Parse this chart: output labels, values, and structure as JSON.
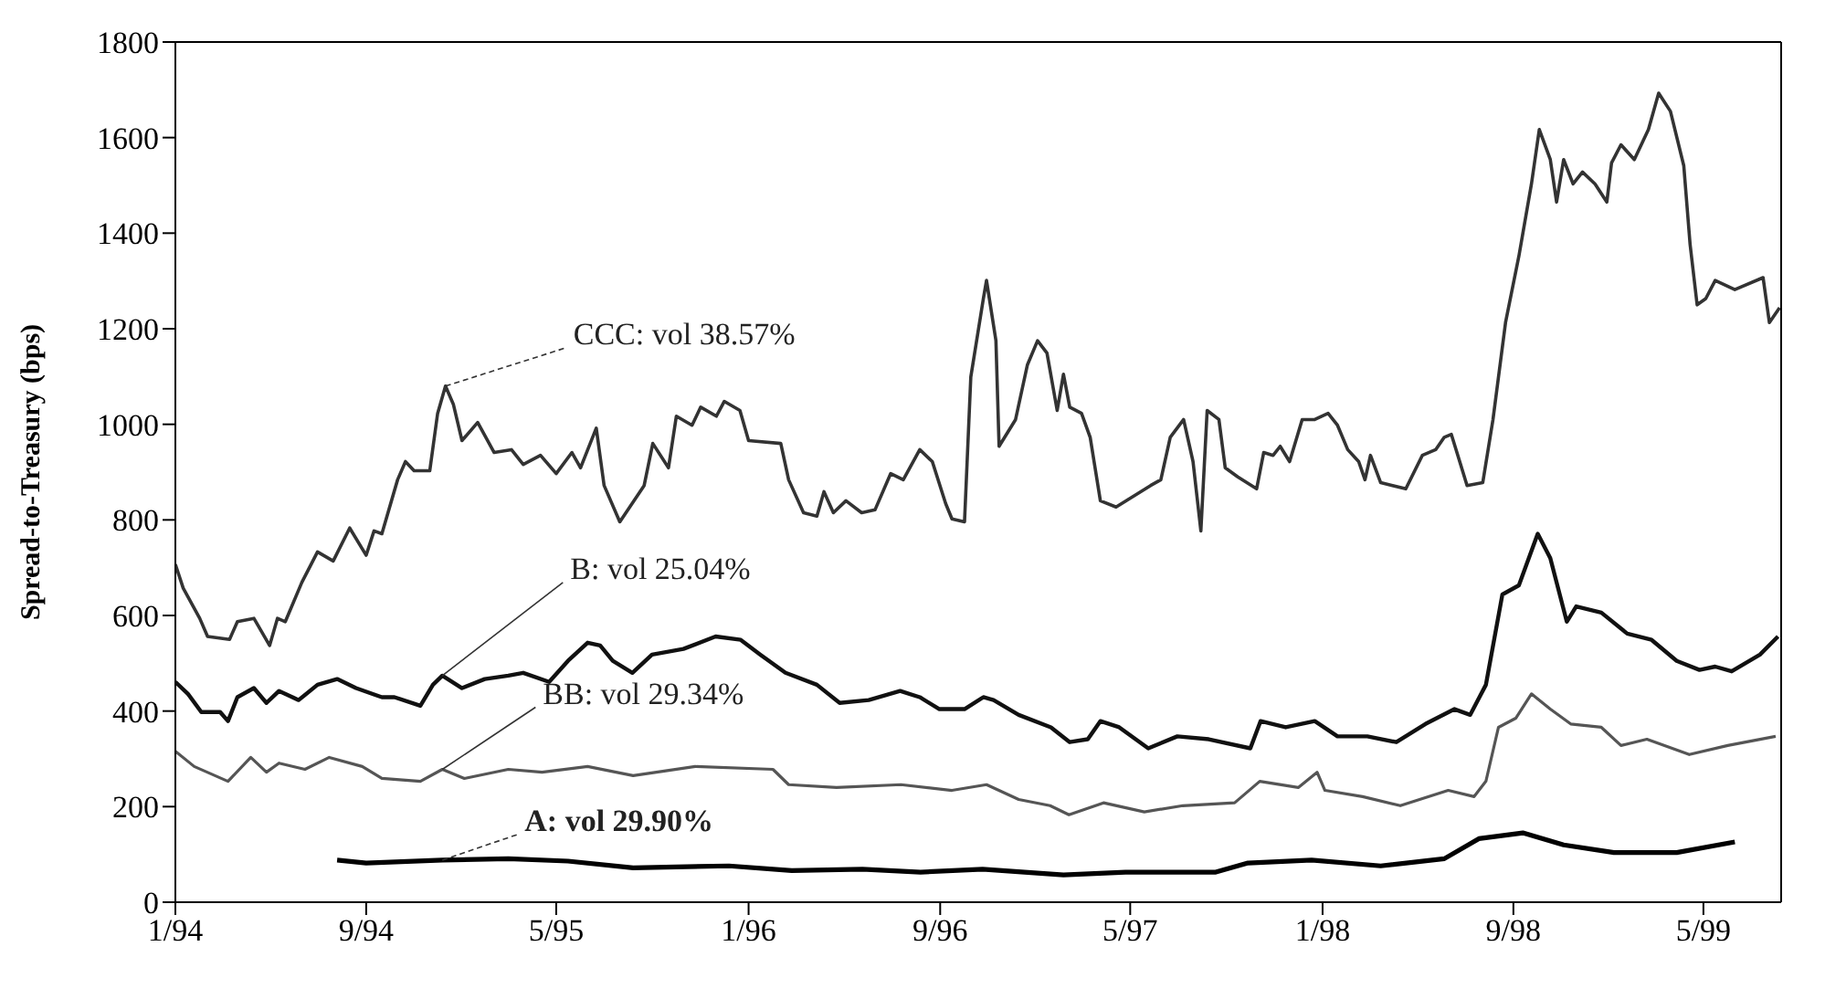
{
  "chart_data": {
    "type": "line",
    "ylabel": "Spread-to-Treasury (bps)",
    "ylim": [
      0,
      1800
    ],
    "yticks": [
      0,
      200,
      400,
      600,
      800,
      1000,
      1200,
      1400,
      1600,
      1800
    ],
    "xlim": [
      "1994-01-01",
      "1999-08-08"
    ],
    "xticks": [
      {
        "value": "1994-01-01",
        "label": "1/94"
      },
      {
        "value": "1994-09-01",
        "label": "9/94"
      },
      {
        "value": "1995-05-01",
        "label": "5/95"
      },
      {
        "value": "1996-01-01",
        "label": "1/96"
      },
      {
        "value": "1996-09-01",
        "label": "9/96"
      },
      {
        "value": "1997-05-01",
        "label": "5/97"
      },
      {
        "value": "1998-01-01",
        "label": "1/98"
      },
      {
        "value": "1998-09-01",
        "label": "9/98"
      },
      {
        "value": "1999-05-01",
        "label": "5/99"
      }
    ],
    "marker": "none",
    "line_style": "solid",
    "annotations": [
      {
        "text": "CCC: vol 38.57%",
        "x": "1994-12-11",
        "y": 1080
      },
      {
        "text": "B: vol 25.04%",
        "x": "1994-12-07",
        "y": 474
      },
      {
        "text": "BB: vol 29.34%",
        "x": "1994-12-07",
        "y": 278
      },
      {
        "text": "A: vol 29.90%",
        "x": "1994-12-07",
        "y": 88
      }
    ],
    "series": [
      {
        "color": "#333333",
        "x": [
          "1994-01-01",
          "1994-01-11",
          "1994-02-01",
          "1994-02-11",
          "1994-03-11",
          "1994-03-21",
          "1994-04-11",
          "1994-05-01",
          "1994-05-11",
          "1994-05-21",
          "1994-06-11",
          "1994-07-01",
          "1994-07-21",
          "1994-08-11",
          "1994-09-01",
          "1994-09-11",
          "1994-09-21",
          "1994-10-11",
          "1994-10-21",
          "1994-11-01",
          "1994-11-21",
          "1994-12-01",
          "1994-12-11",
          "1994-12-21",
          "1995-01-01",
          "1995-01-21",
          "1995-02-11",
          "1995-03-05",
          "1995-03-20",
          "1995-04-11",
          "1995-05-01",
          "1995-05-21",
          "1995-06-01",
          "1995-06-21",
          "1995-07-01",
          "1995-07-21",
          "1995-08-21",
          "1995-09-01",
          "1995-09-21",
          "1995-10-01",
          "1995-10-21",
          "1995-11-01",
          "1995-11-21",
          "1995-12-01",
          "1995-12-21",
          "1996-01-01",
          "1996-02-11",
          "1996-02-21",
          "1996-03-11",
          "1996-03-28",
          "1996-04-06",
          "1996-04-18",
          "1996-05-04",
          "1996-05-24",
          "1996-06-10",
          "1996-06-30",
          "1996-07-16",
          "1996-08-06",
          "1996-08-22",
          "1996-09-08",
          "1996-09-16",
          "1996-10-02",
          "1996-10-10",
          "1996-10-26",
          "1996-10-30",
          "1996-11-11",
          "1996-11-15",
          "1996-12-06",
          "1996-12-21",
          "1997-01-03",
          "1997-01-15",
          "1997-01-28",
          "1997-02-05",
          "1997-02-13",
          "1997-02-28",
          "1997-03-11",
          "1997-03-24",
          "1997-04-13",
          "1997-05-27",
          "1997-06-09",
          "1997-06-21",
          "1997-07-08",
          "1997-07-20",
          "1997-07-30",
          "1997-08-07",
          "1997-08-22",
          "1997-08-30",
          "1997-09-15",
          "1997-10-09",
          "1997-10-18",
          "1997-10-30",
          "1997-11-08",
          "1997-11-20",
          "1997-12-06",
          "1997-12-22",
          "1998-01-08",
          "1998-01-20",
          "1998-02-02",
          "1998-02-16",
          "1998-02-24",
          "1998-03-03",
          "1998-03-16",
          "1998-04-17",
          "1998-05-08",
          "1998-05-25",
          "1998-06-05",
          "1998-06-14",
          "1998-07-04",
          "1998-07-24",
          "1998-08-06",
          "1998-08-22",
          "1998-09-08",
          "1998-09-24",
          "1998-10-04",
          "1998-10-18",
          "1998-10-26",
          "1998-11-04",
          "1998-11-16",
          "1998-11-28",
          "1998-12-14",
          "1998-12-29",
          "1999-01-04",
          "1999-01-16",
          "1999-02-02",
          "1999-02-20",
          "1999-03-05",
          "1999-03-20",
          "1999-04-06",
          "1999-04-14",
          "1999-04-23",
          "1999-05-04",
          "1999-05-16",
          "1999-06-10",
          "1999-07-16",
          "1999-07-24",
          "1999-08-06"
        ],
        "values": [
          707,
          657,
          594,
          556,
          550,
          587,
          594,
          537,
          594,
          587,
          669,
          733,
          714,
          783,
          726,
          777,
          771,
          884,
          922,
          903,
          903,
          1023,
          1080,
          1042,
          966,
          1004,
          941,
          947,
          916,
          935,
          897,
          941,
          909,
          992,
          872,
          796,
          872,
          960,
          909,
          1017,
          998,
          1036,
          1017,
          1048,
          1029,
          966,
          960,
          884,
          815,
          808,
          859,
          815,
          840,
          815,
          821,
          897,
          884,
          947,
          922,
          834,
          802,
          796,
          1099,
          1263,
          1301,
          1175,
          954,
          1010,
          1124,
          1175,
          1149,
          1029,
          1105,
          1036,
          1023,
          973,
          840,
          827,
          872,
          884,
          973,
          1010,
          922,
          777,
          1029,
          1010,
          909,
          890,
          865,
          941,
          935,
          954,
          922,
          1010,
          1010,
          1023,
          998,
          947,
          922,
          884,
          935,
          878,
          865,
          935,
          947,
          973,
          979,
          872,
          878,
          1010,
          1213,
          1352,
          1503,
          1617,
          1554,
          1465,
          1554,
          1503,
          1528,
          1503,
          1465,
          1547,
          1585,
          1554,
          1617,
          1693,
          1655,
          1541,
          1377,
          1250,
          1263,
          1301,
          1282,
          1307,
          1213,
          1244
        ]
      },
      {
        "color": "#111111",
        "x": [
          "1994-01-01",
          "1994-01-17",
          "1994-02-03",
          "1994-02-27",
          "1994-03-09",
          "1994-03-21",
          "1994-04-11",
          "1994-04-27",
          "1994-05-13",
          "1994-06-07",
          "1994-07-01",
          "1994-07-26",
          "1994-08-19",
          "1994-09-21",
          "1994-10-07",
          "1994-11-09",
          "1994-11-25",
          "1994-12-07",
          "1995-01-01",
          "1995-01-30",
          "1995-03-01",
          "1995-03-20",
          "1995-04-22",
          "1995-05-16",
          "1995-06-10",
          "1995-06-26",
          "1995-07-12",
          "1995-08-06",
          "1995-08-31",
          "1995-10-10",
          "1995-11-20",
          "1995-12-22",
          "1996-01-16",
          "1996-02-17",
          "1996-03-28",
          "1996-04-26",
          "1996-06-02",
          "1996-07-12",
          "1996-08-06",
          "1996-08-31",
          "1996-10-02",
          "1996-10-26",
          "1996-11-08",
          "1996-12-10",
          "1997-01-20",
          "1997-02-13",
          "1997-03-08",
          "1997-03-24",
          "1997-04-17",
          "1997-05-24",
          "1997-06-30",
          "1997-08-09",
          "1997-10-01",
          "1997-10-14",
          "1997-11-15",
          "1997-12-22",
          "1998-01-20",
          "1998-02-27",
          "1998-04-05",
          "1998-05-12",
          "1998-06-18",
          "1998-07-08",
          "1998-07-28",
          "1998-08-18",
          "1998-09-08",
          "1998-10-02",
          "1998-10-18",
          "1998-11-08",
          "1998-11-20",
          "1998-12-22",
          "1999-01-24",
          "1999-02-24",
          "1999-03-28",
          "1999-04-26",
          "1999-05-16",
          "1999-06-06",
          "1999-07-12",
          "1999-08-04"
        ],
        "values": [
          461,
          436,
          398,
          398,
          379,
          429,
          448,
          417,
          442,
          423,
          455,
          467,
          448,
          429,
          429,
          411,
          455,
          474,
          448,
          467,
          474,
          480,
          461,
          505,
          543,
          537,
          505,
          480,
          518,
          530,
          556,
          549,
          518,
          480,
          455,
          417,
          423,
          442,
          429,
          404,
          404,
          429,
          423,
          392,
          366,
          335,
          341,
          379,
          366,
          322,
          347,
          341,
          322,
          379,
          366,
          379,
          347,
          347,
          335,
          373,
          404,
          392,
          455,
          644,
          663,
          771,
          720,
          587,
          619,
          606,
          562,
          549,
          505,
          486,
          493,
          483,
          518,
          556
        ]
      },
      {
        "color": "#555555",
        "x": [
          "1994-01-01",
          "1994-01-25",
          "1994-03-09",
          "1994-04-07",
          "1994-04-27",
          "1994-05-13",
          "1994-06-15",
          "1994-07-16",
          "1994-08-27",
          "1994-09-21",
          "1994-11-09",
          "1994-12-07",
          "1995-01-04",
          "1995-03-01",
          "1995-04-13",
          "1995-06-10",
          "1995-08-07",
          "1995-10-25",
          "1996-02-01",
          "1996-02-21",
          "1996-04-22",
          "1996-07-13",
          "1996-09-16",
          "1996-10-30",
          "1996-12-10",
          "1997-01-19",
          "1997-02-12",
          "1997-03-28",
          "1997-05-19",
          "1997-07-07",
          "1997-09-11",
          "1997-10-13",
          "1997-12-01",
          "1997-12-25",
          "1998-01-04",
          "1998-02-21",
          "1998-04-10",
          "1998-06-10",
          "1998-07-13",
          "1998-07-28",
          "1998-08-13",
          "1998-09-04",
          "1998-09-24",
          "1998-10-18",
          "1998-11-13",
          "1998-12-22",
          "1999-01-16",
          "1999-02-18",
          "1999-04-13",
          "1999-06-01",
          "1999-08-01"
        ],
        "values": [
          316,
          284,
          253,
          303,
          272,
          291,
          278,
          303,
          284,
          259,
          253,
          278,
          259,
          278,
          272,
          284,
          265,
          284,
          278,
          246,
          240,
          246,
          234,
          246,
          215,
          202,
          183,
          208,
          189,
          202,
          208,
          253,
          240,
          272,
          234,
          221,
          202,
          234,
          221,
          253,
          366,
          385,
          436,
          404,
          373,
          366,
          328,
          341,
          309,
          328,
          347
        ]
      },
      {
        "color": "#000000",
        "x": [
          "1994-07-26",
          "1994-09-01",
          "1994-12-07",
          "1995-03-01",
          "1995-05-16",
          "1995-08-07",
          "1995-12-07",
          "1996-02-25",
          "1996-05-25",
          "1996-08-07",
          "1996-10-25",
          "1997-02-05",
          "1997-04-25",
          "1997-08-18",
          "1997-09-28",
          "1997-12-18",
          "1998-03-16",
          "1998-06-05",
          "1998-07-19",
          "1998-09-13",
          "1998-11-04",
          "1999-01-07",
          "1999-03-28",
          "1999-06-10"
        ],
        "values": [
          88,
          82,
          88,
          91,
          86,
          72,
          76,
          66,
          69,
          63,
          69,
          57,
          63,
          63,
          82,
          88,
          76,
          91,
          133,
          145,
          120,
          104,
          104,
          126
        ]
      }
    ]
  }
}
